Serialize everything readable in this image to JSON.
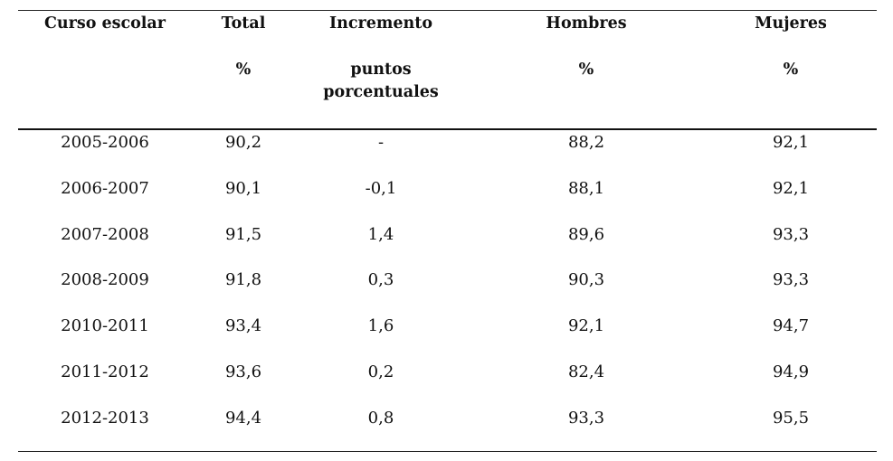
{
  "table": {
    "headers": [
      {
        "title": "Curso escolar",
        "subtitle": ""
      },
      {
        "title": "Total",
        "subtitle": "%"
      },
      {
        "title": "Incremento",
        "subtitle": "puntos porcentuales"
      },
      {
        "title": "Hombres",
        "subtitle": "%"
      },
      {
        "title": "Mujeres",
        "subtitle": "%"
      }
    ],
    "rows": [
      [
        "2005-2006",
        "90,2",
        "-",
        "88,2",
        "92,1"
      ],
      [
        "2006-2007",
        "90,1",
        "-0,1",
        "88,1",
        "92,1"
      ],
      [
        "2007-2008",
        "91,5",
        "1,4",
        "89,6",
        "93,3"
      ],
      [
        "2008-2009",
        "91,8",
        "0,3",
        "90,3",
        "93,3"
      ],
      [
        "2010-2011",
        "93,4",
        "1,6",
        "92,1",
        "94,7"
      ],
      [
        "2011-2012",
        "93,6",
        "0,2",
        "82,4",
        "94,9"
      ],
      [
        "2012-2013",
        "94,4",
        "0,8",
        "93,3",
        "95,5"
      ]
    ]
  }
}
